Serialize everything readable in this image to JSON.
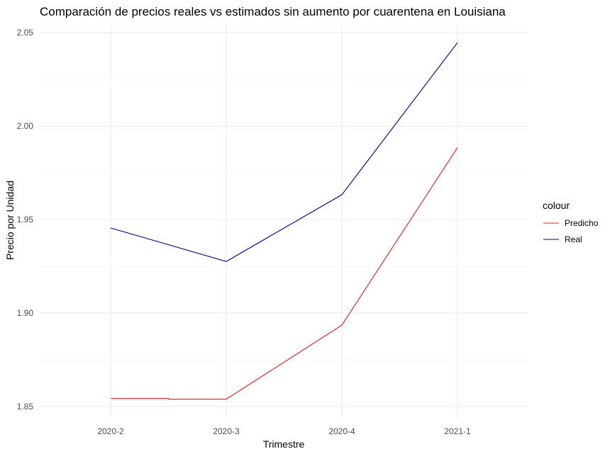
{
  "chart_data": {
    "type": "line",
    "title": "Comparación de precios reales vs estimados sin aumento por cuarentena en Louisiana",
    "xlabel": "Trimestre",
    "ylabel": "Precio por Unidad",
    "categories": [
      "2020-2",
      "2020-3",
      "2020-4",
      "2021-1"
    ],
    "y_ticks": [
      1.85,
      1.9,
      1.95,
      2.0,
      2.05
    ],
    "y_tick_labels": [
      "1.85",
      "1.90",
      "1.95",
      "2.00",
      "2.05"
    ],
    "ylim": [
      1.8435,
      2.055
    ],
    "grid": true,
    "legend": {
      "title": "colour",
      "position": "right"
    },
    "series": [
      {
        "name": "Predicho",
        "color": "#e41a1c",
        "points": [
          {
            "x": "2020-2",
            "y": 1.8543
          },
          {
            "x": "2020-2.5",
            "y": 1.8543
          },
          {
            "x": "2020-2.5",
            "y": 1.8539
          },
          {
            "x": "2020-3",
            "y": 1.8539
          },
          {
            "x": "2020-4",
            "y": 1.8935
          },
          {
            "x": "2021-1",
            "y": 1.9885
          }
        ],
        "values": [
          1.8543,
          1.8539,
          1.8935,
          1.9885
        ]
      },
      {
        "name": "Real",
        "color": "#00008b",
        "values": [
          1.9455,
          1.9276,
          1.9633,
          2.0447
        ]
      }
    ]
  }
}
